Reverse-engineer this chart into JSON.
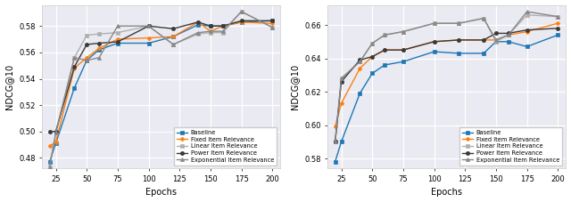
{
  "epochs": [
    20,
    25,
    40,
    50,
    60,
    75,
    100,
    120,
    140,
    150,
    160,
    175,
    200
  ],
  "left": {
    "ylabel": "NDCG@10",
    "xlabel": "Epochs",
    "ylim": [
      0.472,
      0.596
    ],
    "yticks": [
      0.48,
      0.5,
      0.52,
      0.54,
      0.56,
      0.58
    ],
    "series": {
      "Baseline": {
        "color": "#1f77b4",
        "marker": "s",
        "values": [
          0.477,
          0.491,
          0.533,
          0.554,
          0.562,
          0.567,
          0.567,
          0.572,
          0.581,
          0.58,
          0.58,
          0.583,
          0.584
        ]
      },
      "Fixed Item Relevance": {
        "color": "#ff7f0e",
        "marker": "P",
        "values": [
          0.489,
          0.492,
          0.548,
          0.556,
          0.563,
          0.57,
          0.571,
          0.572,
          0.583,
          0.576,
          0.58,
          0.583,
          0.582
        ]
      },
      "Linear Item Relevance": {
        "color": "#b0b0b0",
        "marker": "s",
        "values": [
          0.473,
          0.499,
          0.556,
          0.573,
          0.574,
          0.575,
          0.58,
          0.566,
          0.574,
          0.575,
          0.575,
          0.591,
          0.579
        ]
      },
      "Power Item Relevance": {
        "color": "#3a3a3a",
        "marker": "o",
        "values": [
          0.5,
          0.5,
          0.549,
          0.566,
          0.567,
          0.568,
          0.58,
          0.578,
          0.583,
          0.58,
          0.58,
          0.584,
          0.584
        ]
      },
      "Exponential Item Relevance": {
        "color": "#888888",
        "marker": "^",
        "values": [
          0.473,
          0.499,
          0.556,
          0.554,
          0.556,
          0.58,
          0.58,
          0.566,
          0.575,
          0.576,
          0.576,
          0.591,
          0.579
        ]
      }
    }
  },
  "right": {
    "ylabel": "NDCG@10",
    "xlabel": "Epochs",
    "ylim": [
      0.574,
      0.672
    ],
    "yticks": [
      0.58,
      0.6,
      0.62,
      0.64,
      0.66
    ],
    "series": {
      "Baseline": {
        "color": "#1f77b4",
        "marker": "s",
        "values": [
          0.578,
          0.59,
          0.619,
          0.631,
          0.636,
          0.638,
          0.644,
          0.643,
          0.643,
          0.65,
          0.65,
          0.647,
          0.654
        ]
      },
      "Fixed Item Relevance": {
        "color": "#ff7f0e",
        "marker": "P",
        "values": [
          0.599,
          0.613,
          0.634,
          0.641,
          0.645,
          0.645,
          0.65,
          0.651,
          0.651,
          0.651,
          0.654,
          0.656,
          0.661
        ]
      },
      "Linear Item Relevance": {
        "color": "#b0b0b0",
        "marker": "s",
        "values": [
          0.59,
          0.628,
          0.638,
          0.649,
          0.654,
          0.656,
          0.661,
          0.661,
          0.664,
          0.65,
          0.654,
          0.666,
          0.665
        ]
      },
      "Power Item Relevance": {
        "color": "#3a3a3a",
        "marker": "o",
        "values": [
          0.59,
          0.626,
          0.639,
          0.641,
          0.645,
          0.645,
          0.65,
          0.651,
          0.651,
          0.655,
          0.655,
          0.657,
          0.658
        ]
      },
      "Exponential Item Relevance": {
        "color": "#888888",
        "marker": "^",
        "values": [
          0.59,
          0.628,
          0.638,
          0.649,
          0.654,
          0.656,
          0.661,
          0.661,
          0.664,
          0.651,
          0.654,
          0.668,
          0.665
        ]
      }
    }
  },
  "legend_order": [
    "Baseline",
    "Fixed Item Relevance",
    "Linear Item Relevance",
    "Power Item Relevance",
    "Exponential Item Relevance"
  ],
  "xticks": [
    25,
    50,
    75,
    100,
    125,
    150,
    175,
    200
  ],
  "xlim": [
    14,
    206
  ]
}
